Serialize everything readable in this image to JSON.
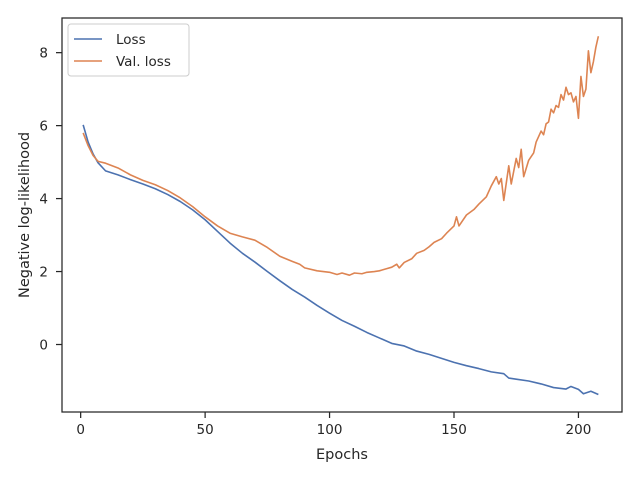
{
  "chart_data": {
    "type": "line",
    "title": "",
    "xlabel": "Epochs",
    "ylabel": "Negative log-likelihood",
    "xlim": [
      -7.5,
      217.5
    ],
    "ylim": [
      -1.85,
      8.95
    ],
    "xticks": [
      0,
      50,
      100,
      150,
      200
    ],
    "yticks": [
      0,
      2,
      4,
      6,
      8
    ],
    "grid": false,
    "legend_position": "top-left",
    "series": [
      {
        "name": "Loss",
        "color": "#4c72b0",
        "x": [
          1,
          3,
          5,
          7,
          10,
          15,
          20,
          25,
          30,
          35,
          40,
          45,
          50,
          55,
          60,
          65,
          70,
          75,
          80,
          85,
          90,
          95,
          100,
          105,
          110,
          115,
          120,
          125,
          130,
          135,
          140,
          145,
          150,
          155,
          160,
          165,
          170,
          172,
          175,
          180,
          185,
          190,
          195,
          197,
          200,
          202,
          205,
          208
        ],
        "y": [
          6.02,
          5.55,
          5.22,
          4.98,
          4.76,
          4.65,
          4.52,
          4.4,
          4.27,
          4.11,
          3.92,
          3.69,
          3.42,
          3.1,
          2.78,
          2.5,
          2.26,
          2.0,
          1.75,
          1.51,
          1.3,
          1.07,
          0.86,
          0.66,
          0.5,
          0.33,
          0.18,
          0.03,
          -0.04,
          -0.18,
          -0.27,
          -0.38,
          -0.49,
          -0.58,
          -0.66,
          -0.75,
          -0.8,
          -0.92,
          -0.95,
          -1.0,
          -1.08,
          -1.18,
          -1.22,
          -1.15,
          -1.23,
          -1.35,
          -1.28,
          -1.37
        ]
      },
      {
        "name": "Val. loss",
        "color": "#dd8452",
        "x": [
          1,
          3,
          5,
          7,
          10,
          15,
          20,
          25,
          30,
          35,
          40,
          45,
          50,
          55,
          60,
          65,
          70,
          75,
          80,
          85,
          88,
          90,
          95,
          100,
          103,
          105,
          108,
          110,
          113,
          115,
          118,
          120,
          123,
          125,
          127,
          128,
          130,
          133,
          135,
          138,
          140,
          142,
          145,
          147,
          150,
          151,
          152,
          155,
          158,
          160,
          163,
          165,
          167,
          168,
          169,
          170,
          172,
          173,
          175,
          176,
          177,
          178,
          180,
          182,
          183,
          185,
          186,
          187,
          188,
          189,
          190,
          191,
          192,
          193,
          194,
          195,
          196,
          197,
          198,
          199,
          200,
          201,
          202,
          203,
          204,
          205,
          206,
          207,
          208
        ],
        "y": [
          5.8,
          5.45,
          5.18,
          5.02,
          4.97,
          4.84,
          4.65,
          4.5,
          4.38,
          4.22,
          4.02,
          3.78,
          3.5,
          3.25,
          3.05,
          2.95,
          2.86,
          2.66,
          2.42,
          2.28,
          2.2,
          2.1,
          2.02,
          1.98,
          1.92,
          1.96,
          1.9,
          1.96,
          1.94,
          1.98,
          2.0,
          2.02,
          2.08,
          2.12,
          2.2,
          2.1,
          2.25,
          2.35,
          2.5,
          2.58,
          2.68,
          2.8,
          2.9,
          3.05,
          3.25,
          3.5,
          3.25,
          3.55,
          3.7,
          3.85,
          4.05,
          4.35,
          4.6,
          4.4,
          4.55,
          3.95,
          4.9,
          4.4,
          5.1,
          4.85,
          5.35,
          4.6,
          5.05,
          5.25,
          5.55,
          5.85,
          5.75,
          6.05,
          6.1,
          6.45,
          6.35,
          6.55,
          6.5,
          6.85,
          6.7,
          7.05,
          6.85,
          6.9,
          6.65,
          6.8,
          6.2,
          7.35,
          6.8,
          7.0,
          8.05,
          7.45,
          7.75,
          8.15,
          8.45
        ]
      }
    ]
  }
}
